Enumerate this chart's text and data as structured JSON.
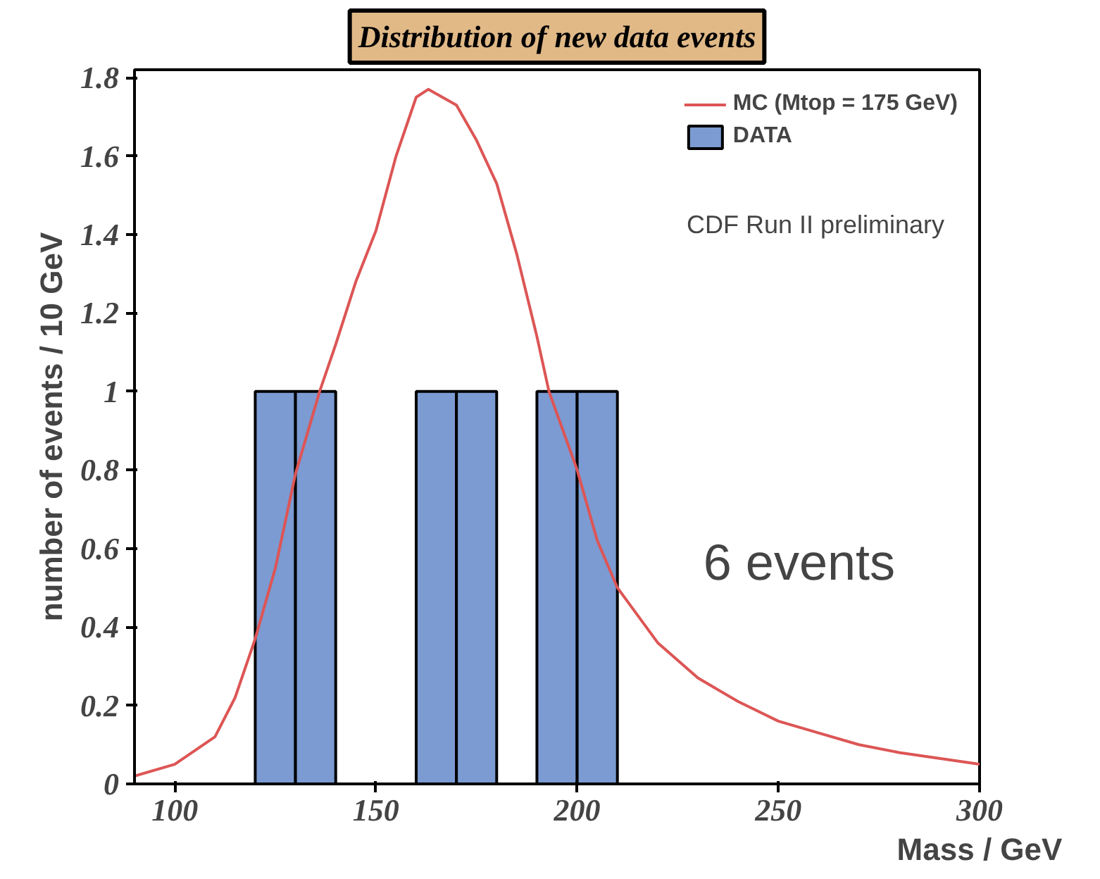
{
  "chart_data": {
    "type": "histogram",
    "title": "Distribution of new data events",
    "xlabel": "Mass / GeV",
    "ylabel": "number of events / 10 GeV",
    "bins": [
      90,
      100,
      110,
      120,
      130,
      140,
      150,
      160,
      170,
      180,
      190,
      200,
      210,
      220,
      230,
      240,
      250,
      260,
      270,
      280,
      290,
      300
    ],
    "series": [
      {
        "name": "MC (Mtop = 175 GeV)",
        "type": "line",
        "color": "#dd5555",
        "x": [
          90,
          100,
          110,
          115,
          120,
          125,
          130,
          136,
          140,
          145,
          150,
          155,
          160,
          163,
          170,
          175,
          180,
          185,
          190,
          193,
          200,
          205,
          210,
          220,
          230,
          240,
          250,
          260,
          270,
          280,
          290,
          300
        ],
        "values": [
          0.02,
          0.05,
          0.12,
          0.22,
          0.37,
          0.55,
          0.79,
          1.0,
          1.12,
          1.28,
          1.41,
          1.6,
          1.75,
          1.77,
          1.73,
          1.64,
          1.53,
          1.35,
          1.14,
          1.0,
          0.8,
          0.62,
          0.5,
          0.36,
          0.27,
          0.21,
          0.16,
          0.13,
          0.1,
          0.08,
          0.065,
          0.05
        ]
      },
      {
        "name": "DATA",
        "type": "histogram",
        "color": "#7b9bd2",
        "values": [
          0,
          0,
          0,
          1,
          1,
          0,
          0,
          1,
          1,
          0,
          1,
          1,
          0,
          0,
          0,
          0,
          0,
          0,
          0,
          0,
          0
        ]
      }
    ],
    "xlim": [
      90,
      300
    ],
    "ylim": [
      0,
      1.82
    ],
    "xticks": [
      100,
      150,
      200,
      250,
      300
    ],
    "yticks": [
      0,
      0.2,
      0.4,
      0.6,
      0.8,
      {
        "value": 1,
        "label": "1"
      },
      1.2,
      1.4,
      1.6,
      1.8
    ],
    "grid": false,
    "legend": "top right",
    "annotations": [
      "CDF Run II preliminary",
      "6 events"
    ]
  }
}
